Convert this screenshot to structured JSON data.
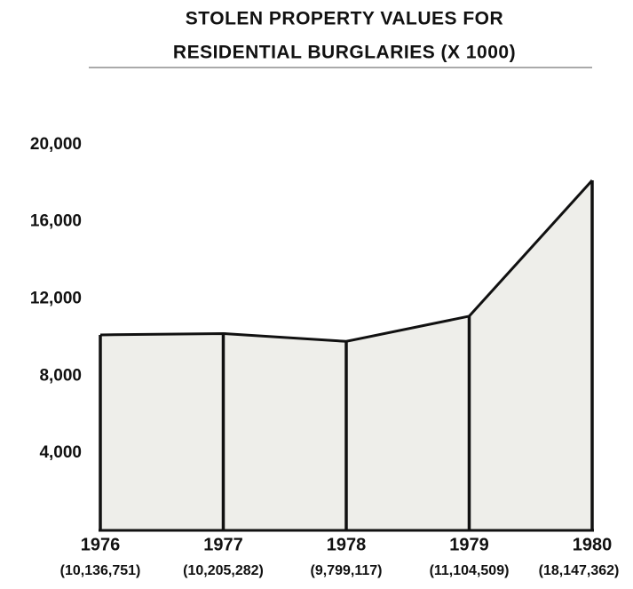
{
  "chart_data": {
    "type": "area",
    "title": [
      "STOLEN PROPERTY VALUES FOR",
      "RESIDENTIAL BURGLARIES (X 1000)"
    ],
    "categories": [
      "1976",
      "1977",
      "1978",
      "1979",
      "1980"
    ],
    "values": [
      10136.751,
      10205.282,
      9799.117,
      11104.509,
      18147.362
    ],
    "value_labels": [
      "(10,136,751)",
      "(10,205,282)",
      "(9,799,117)",
      "(11,104,509)",
      "(18,147,362)"
    ],
    "color": "#111111",
    "fill": "#eeeeea",
    "ylim": [
      0,
      24000
    ],
    "yticks": [
      {
        "value": 4000,
        "label": "4,000"
      },
      {
        "value": 8000,
        "label": "8,000"
      },
      {
        "value": 12000,
        "label": "12,000"
      },
      {
        "value": 16000,
        "label": "16,000"
      },
      {
        "value": 20000,
        "label": "20,000"
      }
    ]
  }
}
